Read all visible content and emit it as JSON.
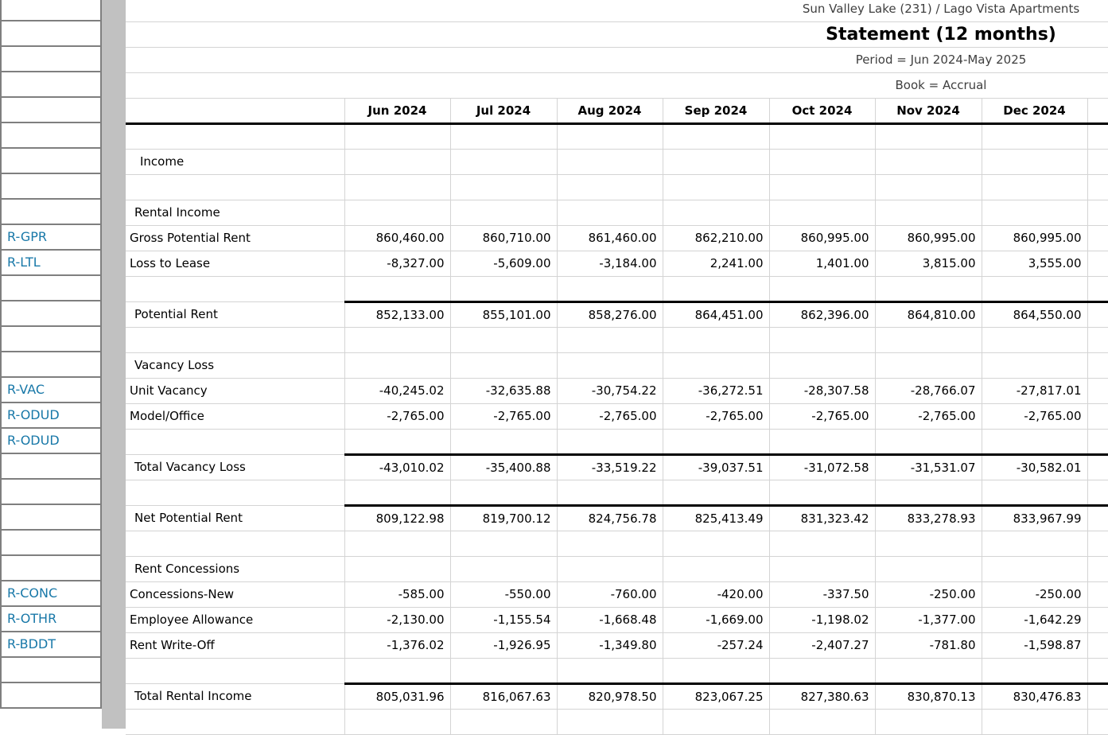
{
  "report": {
    "property_line": "Sun Valley Lake (231) / Lago Vista Apartments",
    "title": "Statement (12 months)",
    "period_line": "Period = Jun 2024-May 2025",
    "book_line": "Book = Accrual"
  },
  "columns": [
    "Jun 2024",
    "Jul 2024",
    "Aug 2024",
    "Sep 2024",
    "Oct 2024",
    "Nov 2024",
    "Dec 2024"
  ],
  "left_codes": [
    {
      "cell_index": 9,
      "code": "R-GPR"
    },
    {
      "cell_index": 10,
      "code": "R-LTL"
    },
    {
      "cell_index": 15,
      "code": "R-VAC"
    },
    {
      "cell_index": 16,
      "code": "R-ODUD"
    },
    {
      "cell_index": 17,
      "code": "R-ODUD"
    },
    {
      "cell_index": 23,
      "code": "R-CONC"
    },
    {
      "cell_index": 24,
      "code": "R-OTHR"
    },
    {
      "cell_index": 25,
      "code": "R-BDDT"
    }
  ],
  "left_cell_count": 28,
  "rows": [
    {
      "type": "blank"
    },
    {
      "type": "section1",
      "label": "Income"
    },
    {
      "type": "blank"
    },
    {
      "type": "section",
      "label": "Rental Income"
    },
    {
      "type": "account",
      "label": "Gross Potential Rent",
      "code": "R-GPR",
      "values": [
        "860,460.00",
        "860,710.00",
        "861,460.00",
        "862,210.00",
        "860,995.00",
        "860,995.00",
        "860,995.00"
      ]
    },
    {
      "type": "account",
      "label": "Loss to Lease",
      "code": "R-LTL",
      "values": [
        "-8,327.00",
        "-5,609.00",
        "-3,184.00",
        "2,241.00",
        "1,401.00",
        "3,815.00",
        "3,555.00"
      ]
    },
    {
      "type": "blank"
    },
    {
      "type": "total",
      "label": "Potential Rent",
      "values": [
        "852,133.00",
        "855,101.00",
        "858,276.00",
        "864,451.00",
        "862,396.00",
        "864,810.00",
        "864,550.00"
      ]
    },
    {
      "type": "blank"
    },
    {
      "type": "section",
      "label": "Vacancy Loss"
    },
    {
      "type": "account",
      "label": "Unit Vacancy",
      "code": "R-VAC",
      "values": [
        "-40,245.02",
        "-32,635.88",
        "-30,754.22",
        "-36,272.51",
        "-28,307.58",
        "-28,766.07",
        "-27,817.01"
      ]
    },
    {
      "type": "account",
      "label": "Model/Office",
      "code": "R-ODUD",
      "values": [
        "-2,765.00",
        "-2,765.00",
        "-2,765.00",
        "-2,765.00",
        "-2,765.00",
        "-2,765.00",
        "-2,765.00"
      ]
    },
    {
      "type": "blank"
    },
    {
      "type": "total",
      "label": "Total Vacancy Loss",
      "values": [
        "-43,010.02",
        "-35,400.88",
        "-33,519.22",
        "-39,037.51",
        "-31,072.58",
        "-31,531.07",
        "-30,582.01"
      ]
    },
    {
      "type": "blank"
    },
    {
      "type": "total",
      "label": "Net Potential Rent",
      "values": [
        "809,122.98",
        "819,700.12",
        "824,756.78",
        "825,413.49",
        "831,323.42",
        "833,278.93",
        "833,967.99"
      ]
    },
    {
      "type": "blank"
    },
    {
      "type": "section",
      "label": "Rent Concessions"
    },
    {
      "type": "account",
      "label": "Concessions-New",
      "code": "R-CONC",
      "values": [
        "-585.00",
        "-550.00",
        "-760.00",
        "-420.00",
        "-337.50",
        "-250.00",
        "-250.00"
      ]
    },
    {
      "type": "account",
      "label": "Employee Allowance",
      "code": "R-OTHR",
      "values": [
        "-2,130.00",
        "-1,155.54",
        "-1,668.48",
        "-1,669.00",
        "-1,198.02",
        "-1,377.00",
        "-1,642.29"
      ]
    },
    {
      "type": "account",
      "label": "Rent Write-Off",
      "code": "R-BDDT",
      "values": [
        "-1,376.02",
        "-1,926.95",
        "-1,349.80",
        "-257.24",
        "-2,407.27",
        "-781.80",
        "-1,598.87"
      ]
    },
    {
      "type": "blank"
    },
    {
      "type": "total",
      "label": "Total Rental Income",
      "values": [
        "805,031.96",
        "816,067.63",
        "820,978.50",
        "823,067.25",
        "827,380.63",
        "830,870.13",
        "830,476.83"
      ]
    },
    {
      "type": "blank"
    }
  ],
  "colors": {
    "account_code_blue": "#1878a8",
    "divider_strip_gray": "#c1c1c1",
    "gridline_gray": "#d4d4d4",
    "left_border_gray": "#7f7f7f",
    "meta_text_gray": "#3f3f3f",
    "rule_black": "#000000"
  }
}
